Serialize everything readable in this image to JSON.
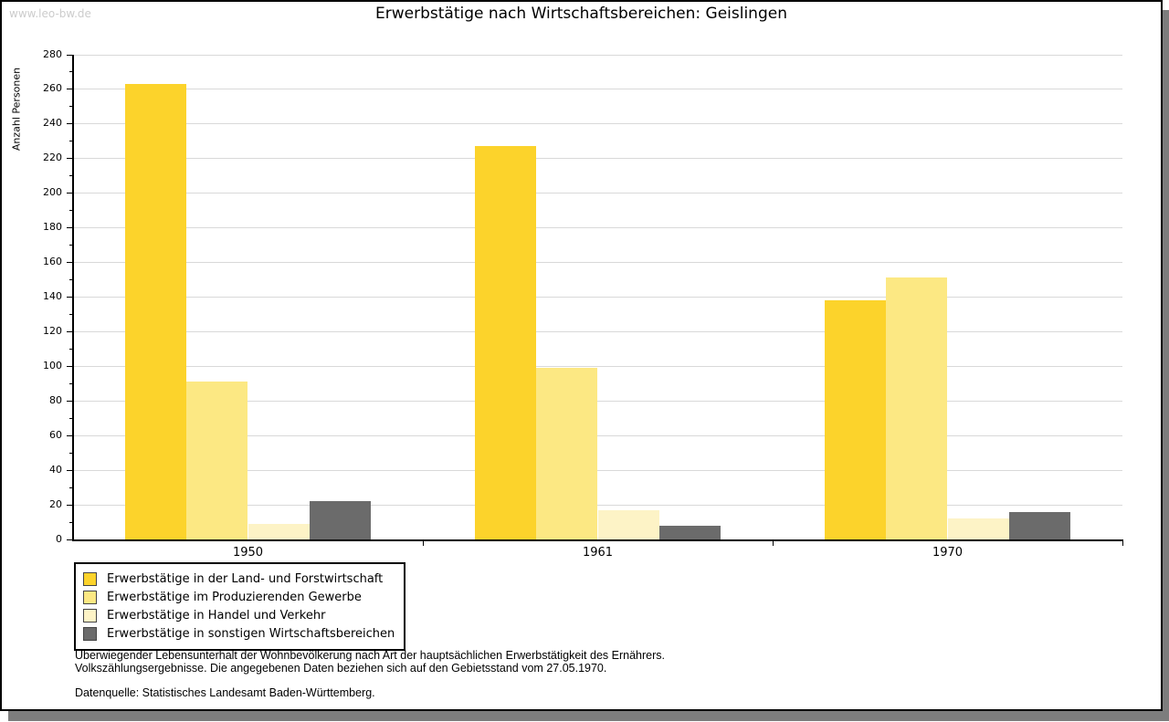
{
  "watermark": "www.leo-bw.de",
  "title": "Erwerbstätige nach Wirtschaftsbereichen: Geislingen",
  "chart_data": {
    "type": "bar",
    "title": "Erwerbstätige nach Wirtschaftsbereichen: Geislingen",
    "xlabel": "",
    "ylabel": "Anzahl Personen",
    "categories": [
      "1950",
      "1961",
      "1970"
    ],
    "series": [
      {
        "name": "Erwerbstätige in der Land- und Forstwirtschaft",
        "color": "#fcd32b",
        "values": [
          263,
          227,
          138
        ]
      },
      {
        "name": "Erwerbstätige im Produzierenden Gewerbe",
        "color": "#fce883",
        "values": [
          91,
          99,
          151
        ]
      },
      {
        "name": "Erwerbstätige in Handel und Verkehr",
        "color": "#fdf3c6",
        "values": [
          9,
          17,
          12
        ]
      },
      {
        "name": "Erwerbstätige in sonstigen Wirtschaftsbereichen",
        "color": "#6b6b6b",
        "values": [
          22,
          8,
          16
        ]
      }
    ],
    "ylim": [
      0,
      280
    ],
    "ytick_step": 20,
    "yminor_step": 10,
    "grid": true,
    "legend_position": "bottom-left",
    "gridline_color": "#d9d9d9"
  },
  "footer": {
    "line1": "Überwiegender Lebensunterhalt der Wohnbevölkerung nach Art der hauptsächlichen Erwerbstätigkeit des Ernährers.",
    "line2": "Volkszählungsergebnisse. Die angegebenen Daten beziehen sich auf den Gebietsstand vom 27.05.1970.",
    "source": "Datenquelle: Statistisches Landesamt Baden-Württemberg."
  }
}
